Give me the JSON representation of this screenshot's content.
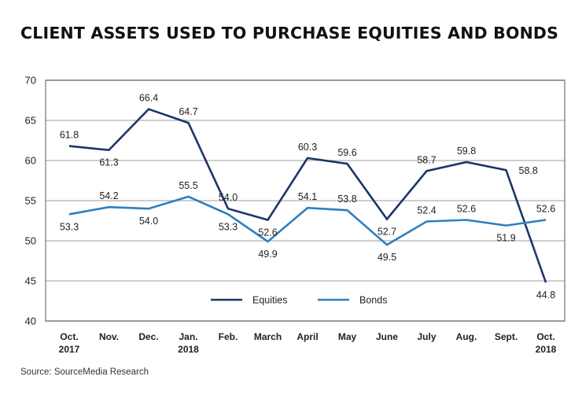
{
  "title": "CLIENT ASSETS USED TO PURCHASE EQUITIES AND BONDS",
  "source": "Source: SourceMedia Research",
  "chart_data": {
    "type": "line",
    "title": "CLIENT ASSETS USED TO PURCHASE EQUITIES AND BONDS",
    "categories": [
      [
        "Oct.",
        "2017"
      ],
      [
        "Nov."
      ],
      [
        "Dec."
      ],
      [
        "Jan.",
        "2018"
      ],
      [
        "Feb."
      ],
      [
        "March"
      ],
      [
        "April"
      ],
      [
        "May"
      ],
      [
        "June"
      ],
      [
        "July"
      ],
      [
        "Aug."
      ],
      [
        "Sept."
      ],
      [
        "Oct.",
        "2018"
      ]
    ],
    "ylim": [
      40,
      70
    ],
    "yticks": [
      40,
      45,
      50,
      55,
      60,
      65,
      70
    ],
    "grid": true,
    "legend": "bottom-center",
    "series": [
      {
        "name": "Equities",
        "color": "#1b3668",
        "values": [
          61.8,
          61.3,
          66.4,
          64.7,
          54.0,
          52.6,
          60.3,
          59.6,
          52.7,
          58.7,
          59.8,
          58.8,
          44.8
        ],
        "labels": [
          "61.8",
          "61.3",
          "66.4",
          "64.7",
          "54.0",
          "52.6",
          "60.3",
          "59.6",
          "52.7",
          "58.7",
          "59.8",
          "58.8",
          "44.8"
        ]
      },
      {
        "name": "Bonds",
        "color": "#2d7fc1",
        "values": [
          53.3,
          54.2,
          54.0,
          55.5,
          53.3,
          49.9,
          54.1,
          53.8,
          49.5,
          52.4,
          52.6,
          51.9,
          52.6
        ],
        "labels": [
          "53.3",
          "54.2",
          "54.0",
          "55.5",
          "53.3",
          "49.9",
          "54.1",
          "53.8",
          "49.5",
          "52.4",
          "52.6",
          "51.9",
          "52.6"
        ]
      }
    ]
  }
}
